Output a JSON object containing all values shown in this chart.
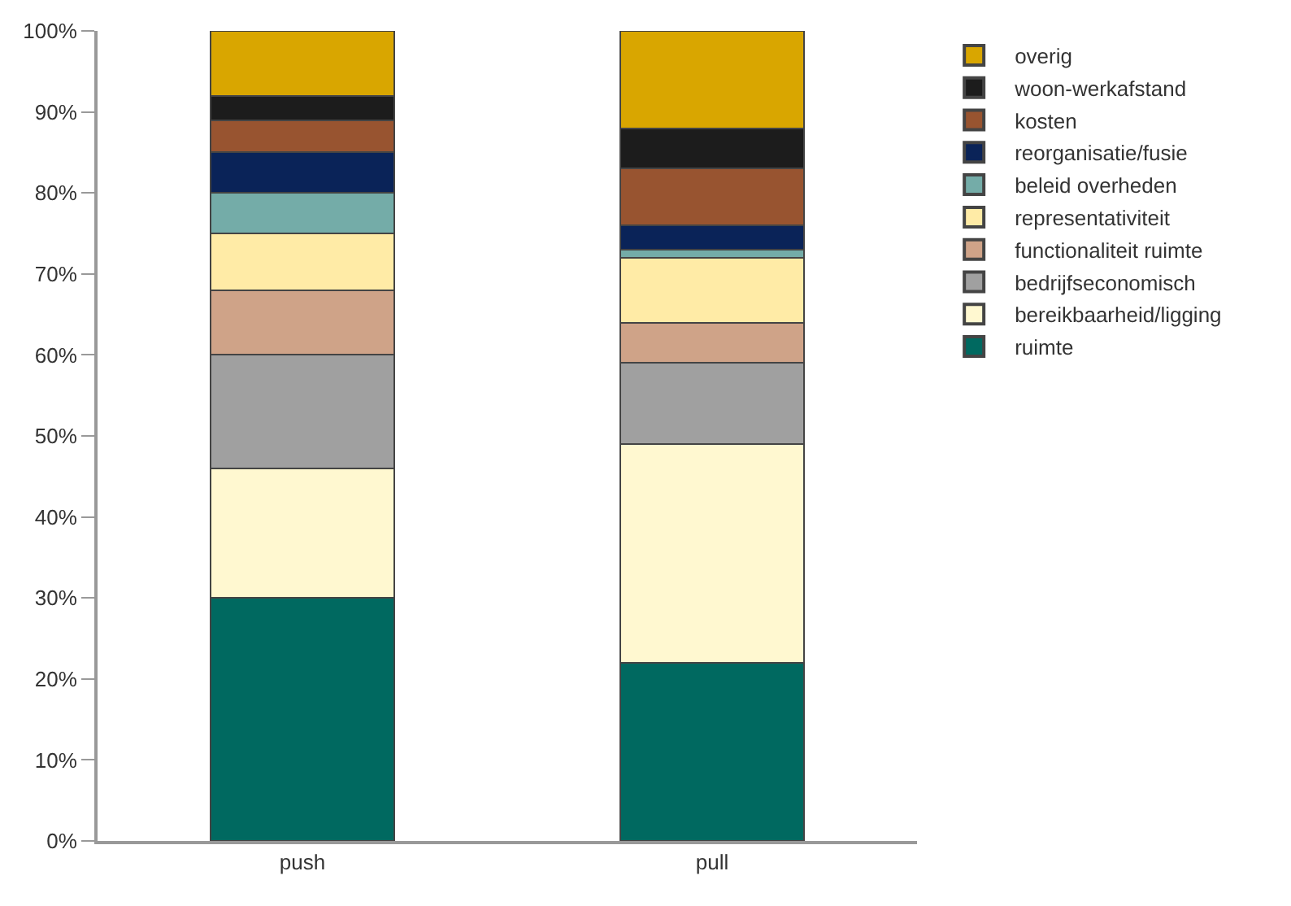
{
  "chart_data": {
    "type": "bar",
    "stacked": true,
    "categories": [
      "push",
      "pull"
    ],
    "series": [
      {
        "name": "ruimte",
        "color": "#006960",
        "values": [
          30,
          22
        ]
      },
      {
        "name": "bereikbaarheid/ligging",
        "color": "#fff8d0",
        "values": [
          16,
          27
        ]
      },
      {
        "name": "bedrijfseconomisch",
        "color": "#a0a0a0",
        "values": [
          14,
          10
        ]
      },
      {
        "name": "functionaliteit ruimte",
        "color": "#cfa388",
        "values": [
          8,
          5
        ]
      },
      {
        "name": "representativiteit",
        "color": "#ffeba6",
        "values": [
          7,
          8
        ]
      },
      {
        "name": "beleid overheden",
        "color": "#74aca8",
        "values": [
          5,
          1
        ]
      },
      {
        "name": "reorganisatie/fusie",
        "color": "#0a2358",
        "values": [
          5,
          3
        ]
      },
      {
        "name": "kosten",
        "color": "#985430",
        "values": [
          4,
          7
        ]
      },
      {
        "name": "woon-werkafstand",
        "color": "#1c1c1c",
        "values": [
          3,
          5
        ]
      },
      {
        "name": "overig",
        "color": "#d9a600",
        "values": [
          8,
          12
        ]
      }
    ],
    "ylim": [
      0,
      100
    ],
    "yticks": [
      {
        "value": 0,
        "label": "0%"
      },
      {
        "value": 10,
        "label": "10%"
      },
      {
        "value": 20,
        "label": "20%"
      },
      {
        "value": 30,
        "label": "30%"
      },
      {
        "value": 40,
        "label": "40%"
      },
      {
        "value": 50,
        "label": "50%"
      },
      {
        "value": 60,
        "label": "60%"
      },
      {
        "value": 70,
        "label": "70%"
      },
      {
        "value": 80,
        "label": "80%"
      },
      {
        "value": 90,
        "label": "90%"
      },
      {
        "value": 100,
        "label": "100%"
      }
    ],
    "legend": "right"
  }
}
